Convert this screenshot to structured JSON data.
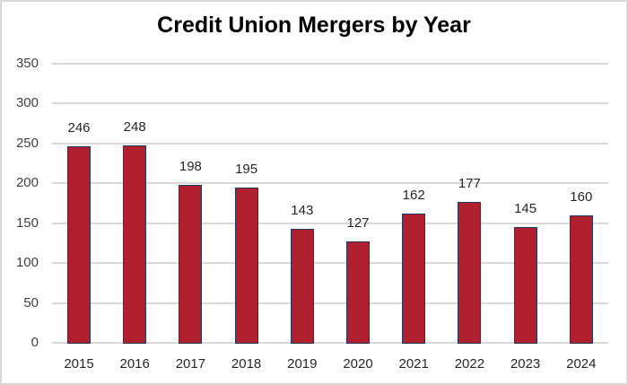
{
  "chart_data": {
    "type": "bar",
    "title": "Credit Union Mergers by Year",
    "xlabel": "",
    "ylabel": "",
    "categories": [
      "2015",
      "2016",
      "2017",
      "2018",
      "2019",
      "2020",
      "2021",
      "2022",
      "2023",
      "2024"
    ],
    "values": [
      246,
      248,
      198,
      195,
      143,
      127,
      162,
      177,
      145,
      160
    ],
    "data_labels": [
      "246",
      "248",
      "198",
      "195",
      "143",
      "127",
      "162",
      "177",
      "145",
      "160"
    ],
    "ylim": [
      0,
      350
    ],
    "yticks": [
      "0",
      "50",
      "100",
      "150",
      "200",
      "250",
      "300",
      "350"
    ],
    "grid": true,
    "legend": null,
    "colors": {
      "bar_fill": "#b01f2e",
      "bar_border": "#1f3864",
      "grid": "#d9d9d9"
    }
  }
}
